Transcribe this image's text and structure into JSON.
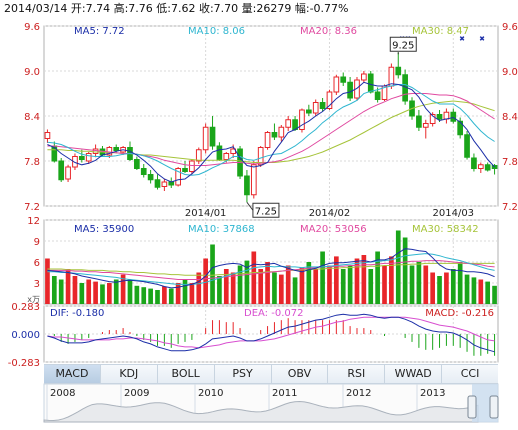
{
  "header": {
    "date": "2014/03/14",
    "open_label": "开:",
    "open": "7.74",
    "high_label": "高:",
    "high": "7.76",
    "low_label": "低:",
    "low": "7.62",
    "close_label": "收:",
    "close": "7.70",
    "volume_label": "量:",
    "volume": "26279",
    "change_label": "幅:",
    "change": "-0.77%"
  },
  "colors": {
    "up": "#e8262a",
    "down": "#1aa51a",
    "ma5": "#1c2fa8",
    "ma10": "#2fb6d0",
    "ma20": "#e04aa0",
    "ma30": "#a6c43a",
    "dif": "#1c2fa8",
    "dea": "#d84fd0",
    "grid": "#d9d9d9",
    "axis_label": "#cc1f1f"
  },
  "tabs": [
    "MACD",
    "KDJ",
    "BOLL",
    "PSY",
    "OBV",
    "RSI",
    "WWAD",
    "CCI"
  ],
  "active_tab": 0,
  "chart_data": [
    {
      "type": "candlestick",
      "legend": [
        {
          "label": "MA5: 7.72",
          "color": "#1c2fa8"
        },
        {
          "label": "MA10: 8.06",
          "color": "#2fb6d0"
        },
        {
          "label": "MA20: 8.36",
          "color": "#e04aa0"
        },
        {
          "label": "MA30: 8.47",
          "color": "#a6c43a"
        }
      ],
      "y_ticks": [
        "9.6",
        "9.0",
        "8.4",
        "7.8",
        "7.2"
      ],
      "ylim": [
        7.2,
        9.6
      ],
      "x_labels": [
        {
          "label": "2014/01",
          "index": 23
        },
        {
          "label": "2014/02",
          "index": 41
        },
        {
          "label": "2014/03",
          "index": 59
        }
      ],
      "annotations": [
        {
          "label": "9.25",
          "index": 51,
          "value": 9.25
        },
        {
          "label": "7.25",
          "index": 29,
          "value": 7.25
        }
      ],
      "candles": [
        [
          8.1,
          8.22,
          8.04,
          8.18
        ],
        [
          8.0,
          8.06,
          7.78,
          7.8
        ],
        [
          7.8,
          7.84,
          7.52,
          7.55
        ],
        [
          7.56,
          7.75,
          7.52,
          7.72
        ],
        [
          7.72,
          7.9,
          7.68,
          7.86
        ],
        [
          7.86,
          7.95,
          7.78,
          7.82
        ],
        [
          7.8,
          7.92,
          7.76,
          7.9
        ],
        [
          7.9,
          8.02,
          7.85,
          7.96
        ],
        [
          7.96,
          8.0,
          7.86,
          7.88
        ],
        [
          7.88,
          8.0,
          7.84,
          7.98
        ],
        [
          7.98,
          8.02,
          7.9,
          7.94
        ],
        [
          7.92,
          8.0,
          7.88,
          7.98
        ],
        [
          7.98,
          8.06,
          7.8,
          7.82
        ],
        [
          7.82,
          7.86,
          7.68,
          7.7
        ],
        [
          7.7,
          7.76,
          7.58,
          7.62
        ],
        [
          7.62,
          7.68,
          7.5,
          7.55
        ],
        [
          7.55,
          7.62,
          7.42,
          7.45
        ],
        [
          7.46,
          7.56,
          7.4,
          7.52
        ],
        [
          7.52,
          7.58,
          7.44,
          7.48
        ],
        [
          7.48,
          7.72,
          7.46,
          7.7
        ],
        [
          7.7,
          7.8,
          7.64,
          7.66
        ],
        [
          7.66,
          7.82,
          7.62,
          7.8
        ],
        [
          7.8,
          7.98,
          7.76,
          7.95
        ],
        [
          7.95,
          8.3,
          7.9,
          8.25
        ],
        [
          8.25,
          8.4,
          7.95,
          8.0
        ],
        [
          8.0,
          8.05,
          7.8,
          7.82
        ],
        [
          7.82,
          7.92,
          7.78,
          7.9
        ],
        [
          7.9,
          8.02,
          7.84,
          7.96
        ],
        [
          7.96,
          8.0,
          7.56,
          7.6
        ],
        [
          7.6,
          7.68,
          7.25,
          7.35
        ],
        [
          7.35,
          7.8,
          7.3,
          7.75
        ],
        [
          7.75,
          8.0,
          7.72,
          7.98
        ],
        [
          7.98,
          8.2,
          7.95,
          8.18
        ],
        [
          8.18,
          8.3,
          8.08,
          8.12
        ],
        [
          8.12,
          8.28,
          8.06,
          8.25
        ],
        [
          8.25,
          8.4,
          8.2,
          8.35
        ],
        [
          8.35,
          8.4,
          8.2,
          8.22
        ],
        [
          8.22,
          8.5,
          8.18,
          8.48
        ],
        [
          8.48,
          8.55,
          8.4,
          8.44
        ],
        [
          8.44,
          8.62,
          8.4,
          8.58
        ],
        [
          8.58,
          8.64,
          8.46,
          8.5
        ],
        [
          8.5,
          8.75,
          8.48,
          8.72
        ],
        [
          8.72,
          8.95,
          8.68,
          8.92
        ],
        [
          8.92,
          8.98,
          8.8,
          8.85
        ],
        [
          8.85,
          8.92,
          8.6,
          8.64
        ],
        [
          8.64,
          8.92,
          8.6,
          8.88
        ],
        [
          8.88,
          9.0,
          8.84,
          8.96
        ],
        [
          8.96,
          9.0,
          8.7,
          8.72
        ],
        [
          8.72,
          8.78,
          8.58,
          8.62
        ],
        [
          8.62,
          8.82,
          8.6,
          8.8
        ],
        [
          8.8,
          9.1,
          8.76,
          9.05
        ],
        [
          9.05,
          9.25,
          8.9,
          8.95
        ],
        [
          8.95,
          9.02,
          8.55,
          8.6
        ],
        [
          8.6,
          8.65,
          8.35,
          8.4
        ],
        [
          8.4,
          8.48,
          8.2,
          8.25
        ],
        [
          8.25,
          8.35,
          8.1,
          8.3
        ],
        [
          8.3,
          8.45,
          8.26,
          8.42
        ],
        [
          8.42,
          8.48,
          8.32,
          8.36
        ],
        [
          8.36,
          8.5,
          8.3,
          8.45
        ],
        [
          8.45,
          8.5,
          8.3,
          8.33
        ],
        [
          8.33,
          8.38,
          8.1,
          8.15
        ],
        [
          8.15,
          8.2,
          7.82,
          7.85
        ],
        [
          7.84,
          7.9,
          7.66,
          7.7
        ],
        [
          7.7,
          7.78,
          7.64,
          7.75
        ],
        [
          7.75,
          7.78,
          7.66,
          7.68
        ],
        [
          7.74,
          7.76,
          7.62,
          7.7
        ]
      ],
      "ma5": [
        8.02,
        7.98,
        7.9,
        7.84,
        7.78,
        7.75,
        7.77,
        7.81,
        7.88,
        7.9,
        7.93,
        7.95,
        7.93,
        7.88,
        7.81,
        7.73,
        7.63,
        7.56,
        7.52,
        7.55,
        7.56,
        7.63,
        7.71,
        7.82,
        7.92,
        7.95,
        7.96,
        7.99,
        7.84,
        7.74,
        7.72,
        7.74,
        7.78,
        7.93,
        8.05,
        8.18,
        8.22,
        8.28,
        8.33,
        8.4,
        8.46,
        8.54,
        8.63,
        8.7,
        8.72,
        8.77,
        8.85,
        8.82,
        8.8,
        8.8,
        8.83,
        8.82,
        8.79,
        8.75,
        8.65,
        8.5,
        8.4,
        8.34,
        8.36,
        8.38,
        8.32,
        8.22,
        8.07,
        7.95,
        7.82,
        7.72
      ],
      "ma10": [
        8.05,
        8.04,
        8.02,
        7.98,
        7.93,
        7.89,
        7.87,
        7.86,
        7.86,
        7.86,
        7.87,
        7.89,
        7.9,
        7.89,
        7.87,
        7.84,
        7.8,
        7.75,
        7.7,
        7.66,
        7.62,
        7.61,
        7.62,
        7.66,
        7.71,
        7.75,
        7.8,
        7.86,
        7.86,
        7.82,
        7.81,
        7.84,
        7.87,
        7.89,
        7.9,
        7.95,
        8.0,
        8.07,
        8.15,
        8.22,
        8.31,
        8.38,
        8.46,
        8.52,
        8.56,
        8.61,
        8.7,
        8.73,
        8.75,
        8.78,
        8.8,
        8.82,
        8.82,
        8.78,
        8.72,
        8.66,
        8.6,
        8.56,
        8.56,
        8.56,
        8.5,
        8.41,
        8.3,
        8.2,
        8.12,
        8.06
      ],
      "ma20": [
        8.0,
        8.0,
        7.99,
        7.98,
        7.97,
        7.96,
        7.95,
        7.94,
        7.93,
        7.92,
        7.91,
        7.9,
        7.9,
        7.89,
        7.87,
        7.86,
        7.84,
        7.81,
        7.79,
        7.77,
        7.75,
        7.74,
        7.74,
        7.74,
        7.75,
        7.76,
        7.77,
        7.78,
        7.78,
        7.77,
        7.76,
        7.77,
        7.78,
        7.79,
        7.81,
        7.85,
        7.89,
        7.93,
        7.98,
        8.04,
        8.1,
        8.16,
        8.22,
        8.28,
        8.34,
        8.4,
        8.46,
        8.51,
        8.55,
        8.59,
        8.63,
        8.66,
        8.69,
        8.7,
        8.7,
        8.7,
        8.69,
        8.68,
        8.68,
        8.67,
        8.64,
        8.6,
        8.54,
        8.48,
        8.42,
        8.36
      ],
      "ma30": [
        7.95,
        7.95,
        7.95,
        7.94,
        7.94,
        7.93,
        7.93,
        7.92,
        7.92,
        7.91,
        7.91,
        7.9,
        7.9,
        7.89,
        7.88,
        7.88,
        7.87,
        7.86,
        7.85,
        7.84,
        7.83,
        7.82,
        7.81,
        7.81,
        7.81,
        7.81,
        7.81,
        7.81,
        7.8,
        7.79,
        7.78,
        7.78,
        7.78,
        7.78,
        7.79,
        7.8,
        7.82,
        7.84,
        7.86,
        7.89,
        7.92,
        7.96,
        8.0,
        8.04,
        8.08,
        8.13,
        8.18,
        8.23,
        8.28,
        8.33,
        8.38,
        8.42,
        8.46,
        8.5,
        8.53,
        8.55,
        8.57,
        8.58,
        8.59,
        8.6,
        8.59,
        8.58,
        8.56,
        8.53,
        8.5,
        8.47
      ]
    },
    {
      "type": "bar",
      "legend": [
        {
          "label": "MA5: 35900",
          "color": "#1c2fa8"
        },
        {
          "label": "MA10: 37868",
          "color": "#2fb6d0"
        },
        {
          "label": "MA20: 53056",
          "color": "#e04aa0"
        },
        {
          "label": "MA30: 58342",
          "color": "#a6c43a"
        }
      ],
      "y_ticks": [
        "12",
        "9",
        "6",
        "3"
      ],
      "unit_label": "x万",
      "ylim": [
        0,
        12
      ],
      "values": [
        6.5,
        4.0,
        3.5,
        5.0,
        4.0,
        3.0,
        3.5,
        3.2,
        2.8,
        3.0,
        3.5,
        4.2,
        3.5,
        2.6,
        2.4,
        2.2,
        2.0,
        2.5,
        2.2,
        3.0,
        3.5,
        3.0,
        4.5,
        6.5,
        8.5,
        4.0,
        5.0,
        4.5,
        5.5,
        6.2,
        7.5,
        5.0,
        6.0,
        4.5,
        4.2,
        5.5,
        3.8,
        5.2,
        6.0,
        5.0,
        7.5,
        5.5,
        6.8,
        5.0,
        5.5,
        6.5,
        7.0,
        5.0,
        7.5,
        5.5,
        6.8,
        10.5,
        9.5,
        5.5,
        6.0,
        5.5,
        4.5,
        4.0,
        4.5,
        5.0,
        6.0,
        4.2,
        3.8,
        3.5,
        3.2,
        2.6
      ],
      "ma5": [
        4.8,
        4.7,
        4.6,
        4.5,
        4.3,
        4.0,
        3.8,
        3.6,
        3.4,
        3.2,
        3.1,
        3.3,
        3.4,
        3.3,
        3.2,
        3.0,
        2.8,
        2.5,
        2.3,
        2.4,
        2.6,
        2.8,
        3.2,
        4.0,
        5.2,
        5.5,
        5.7,
        5.8,
        5.7,
        5.2,
        5.7,
        5.6,
        5.7,
        5.8,
        5.4,
        5.1,
        4.8,
        4.6,
        4.9,
        5.1,
        5.5,
        5.8,
        5.9,
        5.9,
        6.0,
        6.1,
        6.2,
        6.0,
        6.3,
        6.3,
        6.6,
        7.3,
        7.9,
        7.8,
        7.6,
        7.5,
        6.6,
        5.6,
        5.0,
        4.8,
        4.8,
        4.6,
        4.6,
        4.5,
        4.3,
        3.9
      ],
      "ma10": [
        4.6,
        4.6,
        4.5,
        4.5,
        4.4,
        4.3,
        4.2,
        4.1,
        4.0,
        3.9,
        3.8,
        3.6,
        3.5,
        3.4,
        3.3,
        3.2,
        3.1,
        3.0,
        2.9,
        2.8,
        2.8,
        2.8,
        2.9,
        3.1,
        3.4,
        3.7,
        4.0,
        4.3,
        4.6,
        4.8,
        5.2,
        5.3,
        5.4,
        5.3,
        5.4,
        5.3,
        5.3,
        5.2,
        5.3,
        5.3,
        5.3,
        5.4,
        5.5,
        5.6,
        5.7,
        5.8,
        5.9,
        6.0,
        6.1,
        6.2,
        6.3,
        6.6,
        6.9,
        7.0,
        7.1,
        7.2,
        7.1,
        6.9,
        6.6,
        6.4,
        6.2,
        5.9,
        5.6,
        5.3,
        5.0,
        4.8
      ],
      "ma20": [
        4.8,
        4.8,
        4.8,
        4.8,
        4.7,
        4.7,
        4.6,
        4.6,
        4.5,
        4.5,
        4.4,
        4.3,
        4.2,
        4.1,
        4.0,
        3.9,
        3.8,
        3.7,
        3.6,
        3.5,
        3.5,
        3.5,
        3.5,
        3.6,
        3.7,
        3.8,
        3.9,
        4.0,
        4.1,
        4.2,
        4.3,
        4.4,
        4.5,
        4.6,
        4.7,
        4.8,
        4.9,
        5.0,
        5.1,
        5.2,
        5.3,
        5.3,
        5.4,
        5.4,
        5.5,
        5.5,
        5.6,
        5.6,
        5.7,
        5.8,
        5.8,
        5.9,
        6.0,
        6.1,
        6.1,
        6.2,
        6.2,
        6.2,
        6.1,
        6.0,
        5.9,
        5.8,
        5.7,
        5.6,
        5.4,
        5.3
      ],
      "ma30": [
        5.0,
        5.0,
        5.0,
        4.9,
        4.9,
        4.9,
        4.8,
        4.8,
        4.8,
        4.7,
        4.7,
        4.6,
        4.6,
        4.5,
        4.5,
        4.4,
        4.3,
        4.3,
        4.2,
        4.2,
        4.1,
        4.1,
        4.1,
        4.1,
        4.1,
        4.2,
        4.2,
        4.3,
        4.3,
        4.4,
        4.5,
        4.5,
        4.6,
        4.6,
        4.7,
        4.8,
        4.8,
        4.9,
        4.9,
        5.0,
        5.0,
        5.1,
        5.1,
        5.2,
        5.2,
        5.3,
        5.3,
        5.4,
        5.4,
        5.5,
        5.5,
        5.6,
        5.6,
        5.7,
        5.7,
        5.8,
        5.8,
        5.8,
        5.8,
        5.8,
        5.8,
        5.8,
        5.8,
        5.8,
        5.8,
        5.8
      ]
    },
    {
      "type": "line",
      "legend": [
        {
          "label": "DIF: -0.180",
          "color": "#1c2fa8"
        },
        {
          "label": "DEA: -0.072",
          "color": "#d84fd0"
        },
        {
          "label": "MACD: -0.216",
          "color": "#cc1f1f"
        }
      ],
      "y_ticks": [
        "0.283",
        "0.000",
        "-0.283"
      ],
      "ylim": [
        -0.283,
        0.283
      ],
      "dif": [
        -0.02,
        -0.04,
        -0.07,
        -0.09,
        -0.09,
        -0.09,
        -0.08,
        -0.06,
        -0.05,
        -0.04,
        -0.03,
        -0.02,
        -0.03,
        -0.05,
        -0.08,
        -0.1,
        -0.13,
        -0.15,
        -0.17,
        -0.17,
        -0.17,
        -0.16,
        -0.14,
        -0.1,
        -0.05,
        -0.04,
        -0.03,
        -0.02,
        -0.04,
        -0.07,
        -0.07,
        -0.05,
        -0.02,
        0.01,
        0.04,
        0.07,
        0.08,
        0.1,
        0.12,
        0.14,
        0.15,
        0.17,
        0.19,
        0.2,
        0.19,
        0.19,
        0.2,
        0.19,
        0.17,
        0.16,
        0.17,
        0.17,
        0.15,
        0.12,
        0.08,
        0.05,
        0.03,
        0.02,
        0.02,
        0.01,
        -0.02,
        -0.06,
        -0.11,
        -0.14,
        -0.16,
        -0.18
      ],
      "dea": [
        -0.02,
        -0.03,
        -0.03,
        -0.04,
        -0.05,
        -0.06,
        -0.06,
        -0.06,
        -0.06,
        -0.06,
        -0.05,
        -0.05,
        -0.04,
        -0.04,
        -0.05,
        -0.06,
        -0.07,
        -0.09,
        -0.1,
        -0.12,
        -0.13,
        -0.13,
        -0.14,
        -0.13,
        -0.12,
        -0.11,
        -0.09,
        -0.08,
        -0.07,
        -0.07,
        -0.07,
        -0.07,
        -0.06,
        -0.05,
        -0.03,
        -0.01,
        0.01,
        0.03,
        0.05,
        0.07,
        0.08,
        0.1,
        0.12,
        0.13,
        0.15,
        0.16,
        0.17,
        0.17,
        0.17,
        0.17,
        0.17,
        0.17,
        0.17,
        0.16,
        0.15,
        0.13,
        0.11,
        0.09,
        0.08,
        0.07,
        0.05,
        0.03,
        0.0,
        -0.03,
        -0.06,
        -0.07
      ]
    },
    {
      "type": "area",
      "x_labels": [
        "2008",
        "2009",
        "2010",
        "2011",
        "2012",
        "2013"
      ]
    }
  ]
}
